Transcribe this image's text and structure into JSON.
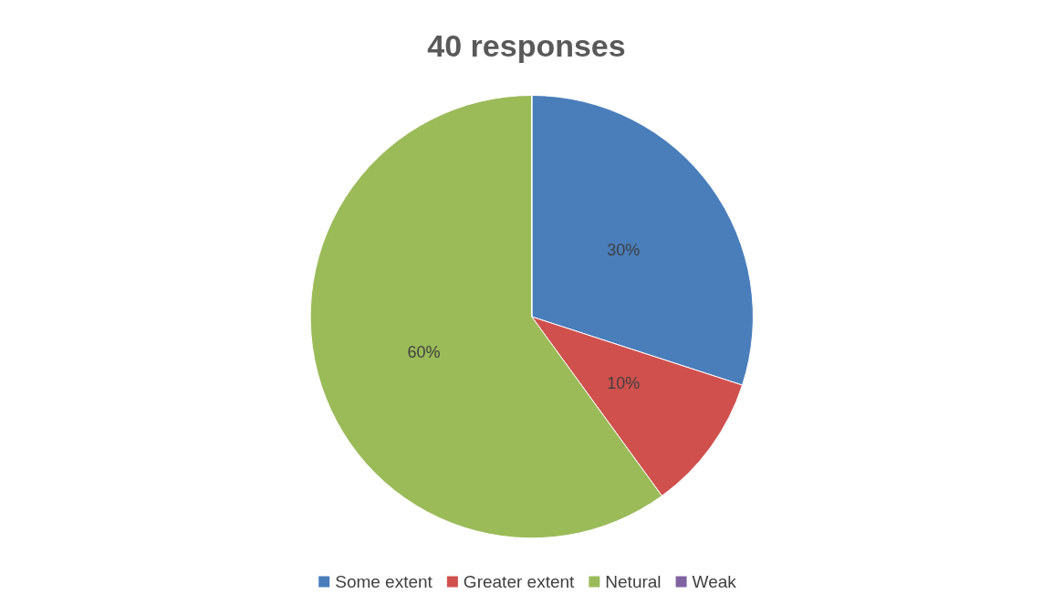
{
  "chart_data": {
    "type": "pie",
    "title": "40 responses",
    "categories": [
      "Some extent",
      "Greater extent",
      "Netural",
      "Weak"
    ],
    "values": [
      30,
      10,
      60,
      0
    ],
    "value_labels": [
      "30%",
      "10%",
      "60%",
      null
    ],
    "colors": [
      "#4a7ebb",
      "#d0504d",
      "#9bbb59",
      "#8064a2"
    ],
    "legend": "bottom"
  }
}
